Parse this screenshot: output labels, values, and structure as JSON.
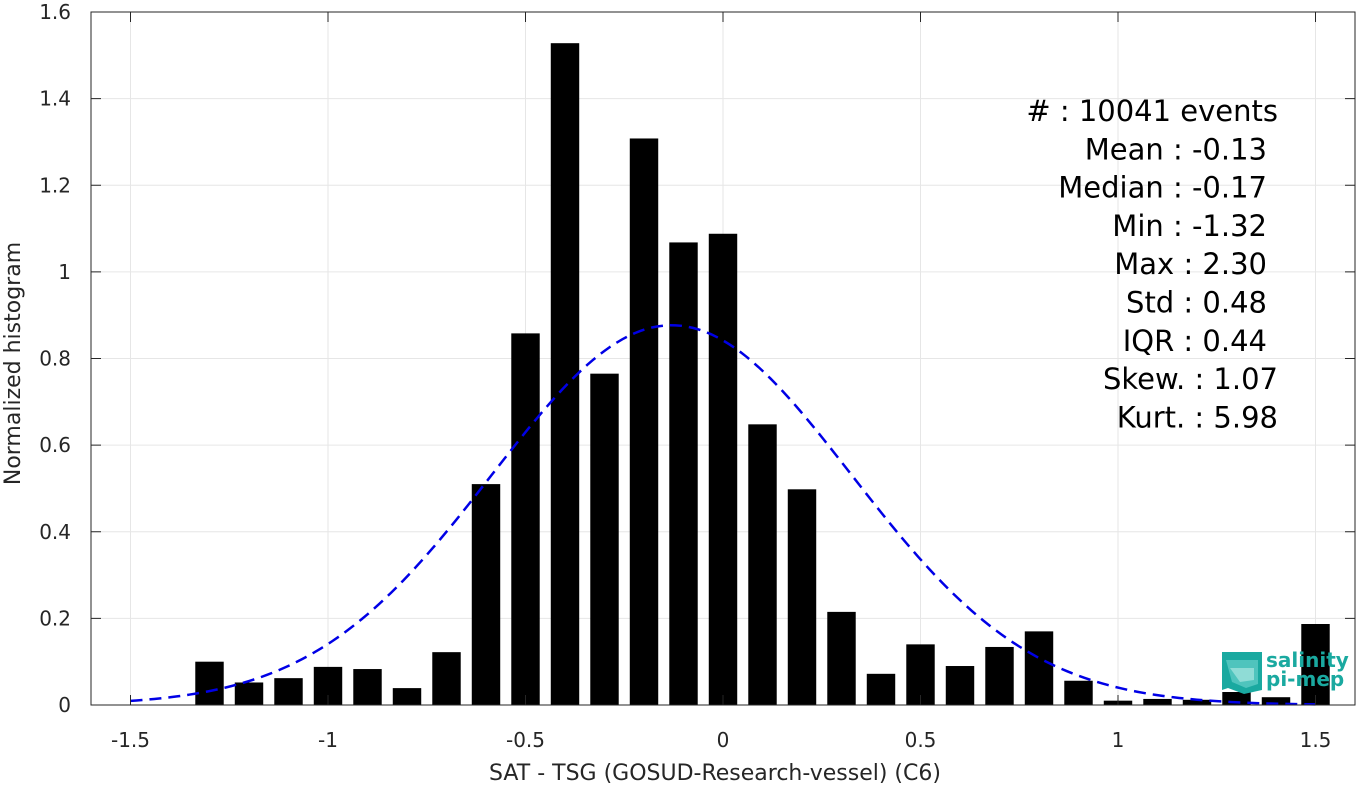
{
  "chart_data": {
    "type": "bar",
    "title": "",
    "xlabel": "SAT - TSG (GOSUD-Research-vessel) (C6)",
    "ylabel": "Normalized histogram",
    "xlim": [
      -1.6,
      1.6
    ],
    "ylim": [
      0,
      1.6
    ],
    "x_ticks": [
      -1.5,
      -1,
      -0.5,
      0,
      0.5,
      1,
      1.5
    ],
    "x_tick_labels": [
      "-1.5",
      "-1",
      "-0.5",
      "0",
      "0.5",
      "1",
      "1.5"
    ],
    "y_ticks": [
      0,
      0.2,
      0.4,
      0.6,
      0.8,
      1,
      1.2,
      1.4,
      1.6
    ],
    "y_tick_labels": [
      "0",
      "0.2",
      "0.4",
      "0.6",
      "0.8",
      "1",
      "1.2",
      "1.4",
      "1.6"
    ],
    "grid": true,
    "bin_width": 0.1,
    "bars": {
      "color": "#000000",
      "x": [
        -1.3,
        -1.2,
        -1.1,
        -1.0,
        -0.9,
        -0.8,
        -0.7,
        -0.6,
        -0.5,
        -0.4,
        -0.3,
        -0.2,
        -0.1,
        0.0,
        0.1,
        0.2,
        0.3,
        0.4,
        0.5,
        0.6,
        0.7,
        0.8,
        0.9,
        1.0,
        1.1,
        1.2,
        1.3,
        1.4,
        1.5
      ],
      "values": [
        0.1,
        0.052,
        0.062,
        0.088,
        0.083,
        0.039,
        0.122,
        0.51,
        0.858,
        1.528,
        0.765,
        1.308,
        1.068,
        1.088,
        0.648,
        0.498,
        0.215,
        0.072,
        0.14,
        0.09,
        0.134,
        0.17,
        0.056,
        0.01,
        0.014,
        0.012,
        0.03,
        0.018,
        0.187
      ]
    },
    "fit_curve": {
      "type": "normal",
      "style": "dashed",
      "color": "#0000e6",
      "mean": -0.13,
      "std": 0.455,
      "x_range": [
        -1.5,
        1.5
      ]
    },
    "stats_box": {
      "lines": [
        {
          "label": "#  : 10041 events"
        },
        {
          "label": "Mean : -0.13"
        },
        {
          "label": "Median : -0.17"
        },
        {
          "label": "Min : -1.32"
        },
        {
          "label": "Max : 2.30"
        },
        {
          "label": "Std : 0.48"
        },
        {
          "label": "IQR : 0.44"
        },
        {
          "label": "Skew. : 1.07"
        },
        {
          "label": "Kurt. : 5.98"
        }
      ],
      "placement": "top-right"
    },
    "logo": {
      "line1": "salinity",
      "line2": "pi-mep",
      "color": "#1aa9a0"
    }
  }
}
